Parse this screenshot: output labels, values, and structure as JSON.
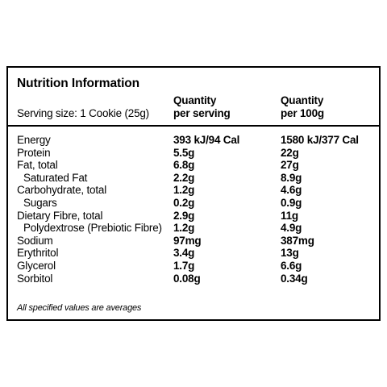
{
  "header": {
    "title": "Nutrition Information",
    "serving_size": "Serving size: 1 Cookie (25g)",
    "column_1": [
      "Quantity",
      "per serving"
    ],
    "column_2": [
      "Quantity",
      "per 100g"
    ]
  },
  "table": {
    "rows": [
      {
        "name": "Energy",
        "per_serving": "393 kJ/94 Cal",
        "per_100g": "1580 kJ/377 Cal",
        "indent": false
      },
      {
        "name": "Protein",
        "per_serving": "5.5g",
        "per_100g": "22g",
        "indent": false
      },
      {
        "name": "Fat, total",
        "per_serving": "6.8g",
        "per_100g": "27g",
        "indent": false
      },
      {
        "name": "Saturated Fat",
        "per_serving": "2.2g",
        "per_100g": "8.9g",
        "indent": true
      },
      {
        "name": "Carbohydrate, total",
        "per_serving": "1.2g",
        "per_100g": "4.6g",
        "indent": false
      },
      {
        "name": "Sugars",
        "per_serving": "0.2g",
        "per_100g": "0.9g",
        "indent": true
      },
      {
        "name": "Dietary Fibre, total",
        "per_serving": "2.9g",
        "per_100g": "11g",
        "indent": false
      },
      {
        "name": "Polydextrose (Prebiotic Fibre)",
        "per_serving": "1.2g",
        "per_100g": "4.9g",
        "indent": true
      },
      {
        "name": "Sodium",
        "per_serving": "97mg",
        "per_100g": "387mg",
        "indent": false
      },
      {
        "name": "Erythritol",
        "per_serving": "3.4g",
        "per_100g": "13g",
        "indent": false
      },
      {
        "name": "Glycerol",
        "per_serving": "1.7g",
        "per_100g": "6.6g",
        "indent": false
      },
      {
        "name": "Sorbitol",
        "per_serving": "0.08g",
        "per_100g": "0.34g",
        "indent": false
      }
    ]
  },
  "footnote": "All specified values are averages"
}
